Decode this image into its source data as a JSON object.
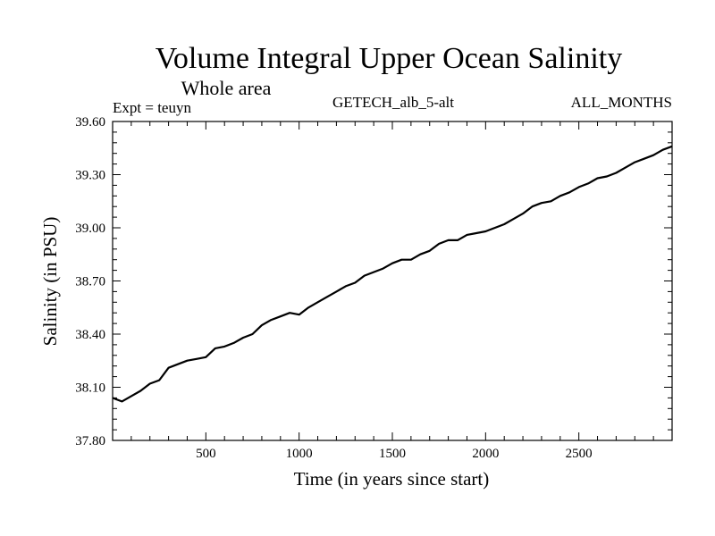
{
  "chart_data": {
    "type": "line",
    "title": "Volume Integral Upper Ocean Salinity",
    "subtitle": "Whole area",
    "left_label": "Expt = teuyn",
    "center_label": "GETECH_alb_5-alt",
    "right_label": "ALL_MONTHS",
    "xlabel": "Time (in years since start)",
    "ylabel": "Salinity (in PSU)",
    "xlim": [
      0,
      3000
    ],
    "ylim": [
      37.8,
      39.6
    ],
    "x_ticks": [
      500,
      1000,
      1500,
      2000,
      2500
    ],
    "x_tick_labels": [
      "500",
      "1000",
      "1500",
      "2000",
      "2500"
    ],
    "y_ticks": [
      37.8,
      38.1,
      38.4,
      38.7,
      39.0,
      39.3,
      39.6
    ],
    "y_tick_labels": [
      "37.80",
      "38.10",
      "38.40",
      "38.70",
      "39.00",
      "39.30",
      "39.60"
    ],
    "grid": false,
    "series": [
      {
        "color": "#000000",
        "x": [
          0,
          50,
          100,
          150,
          200,
          250,
          300,
          350,
          400,
          450,
          500,
          550,
          600,
          650,
          700,
          750,
          800,
          850,
          900,
          950,
          1000,
          1050,
          1100,
          1150,
          1200,
          1250,
          1300,
          1350,
          1400,
          1450,
          1500,
          1550,
          1600,
          1650,
          1700,
          1750,
          1800,
          1850,
          1900,
          1950,
          2000,
          2050,
          2100,
          2150,
          2200,
          2250,
          2300,
          2350,
          2400,
          2450,
          2500,
          2550,
          2600,
          2650,
          2700,
          2750,
          2800,
          2850,
          2900,
          2950,
          3000
        ],
        "y": [
          38.04,
          38.02,
          38.05,
          38.08,
          38.12,
          38.14,
          38.21,
          38.23,
          38.25,
          38.26,
          38.27,
          38.32,
          38.33,
          38.35,
          38.38,
          38.4,
          38.45,
          38.48,
          38.5,
          38.52,
          38.51,
          38.55,
          38.58,
          38.61,
          38.64,
          38.67,
          38.69,
          38.73,
          38.75,
          38.77,
          38.8,
          38.82,
          38.82,
          38.85,
          38.87,
          38.91,
          38.93,
          38.93,
          38.96,
          38.97,
          38.98,
          39.0,
          39.02,
          39.05,
          39.08,
          39.12,
          39.14,
          39.15,
          39.18,
          39.2,
          39.23,
          39.25,
          39.28,
          39.29,
          39.31,
          39.34,
          39.37,
          39.39,
          39.41,
          39.44,
          39.46
        ]
      }
    ]
  }
}
